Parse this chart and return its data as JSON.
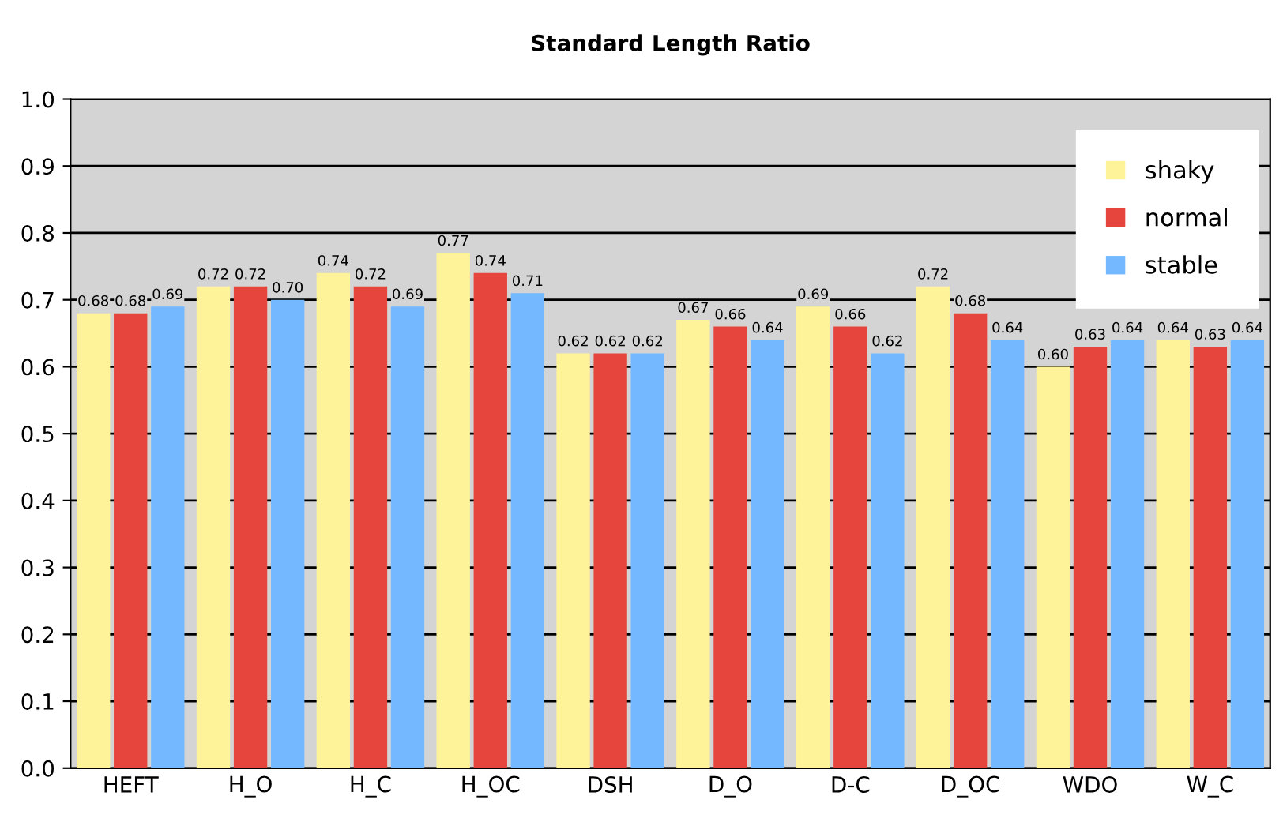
{
  "chart_data": {
    "type": "bar",
    "title": "Standard Length Ratio",
    "categories": [
      "HEFT",
      "H_O",
      "H_C",
      "H_OC",
      "DSH",
      "D_O",
      "D-C",
      "D_OC",
      "WDO",
      "W_C"
    ],
    "series": [
      {
        "name": "shaky",
        "color": "#fff39a",
        "values": [
          0.68,
          0.72,
          0.74,
          0.77,
          0.62,
          0.67,
          0.69,
          0.72,
          0.6,
          0.64
        ],
        "value_labels": [
          "0.68",
          "0.72",
          "0.74",
          "0.77",
          "0.62",
          "0.67",
          "0.69",
          "0.72",
          "0.60",
          "0.64"
        ]
      },
      {
        "name": "normal",
        "color": "#e5453d",
        "values": [
          0.68,
          0.72,
          0.72,
          0.74,
          0.62,
          0.66,
          0.66,
          0.68,
          0.63,
          0.63
        ],
        "value_labels": [
          "0.68",
          "0.72",
          "0.72",
          "0.74",
          "0.62",
          "0.66",
          "0.66",
          "0.68",
          "0.63",
          "0.63"
        ]
      },
      {
        "name": "stable",
        "color": "#74b9ff",
        "values": [
          0.69,
          0.7,
          0.69,
          0.71,
          0.62,
          0.64,
          0.62,
          0.64,
          0.64,
          0.64
        ],
        "value_labels": [
          "0.69",
          "0.70",
          "0.69",
          "0.71",
          "0.62",
          "0.64",
          "0.62",
          "0.64",
          "0.64",
          "0.64"
        ]
      }
    ],
    "ylim": [
      0,
      1.0
    ],
    "yticks": [
      {
        "value": 0,
        "label": "0.0"
      },
      0.1,
      0.2,
      0.3,
      0.4,
      0.5,
      0.6,
      0.7,
      0.8,
      0.9,
      {
        "value": 1.0,
        "label": "1.0"
      }
    ],
    "grid": "y",
    "legend": "top right"
  }
}
